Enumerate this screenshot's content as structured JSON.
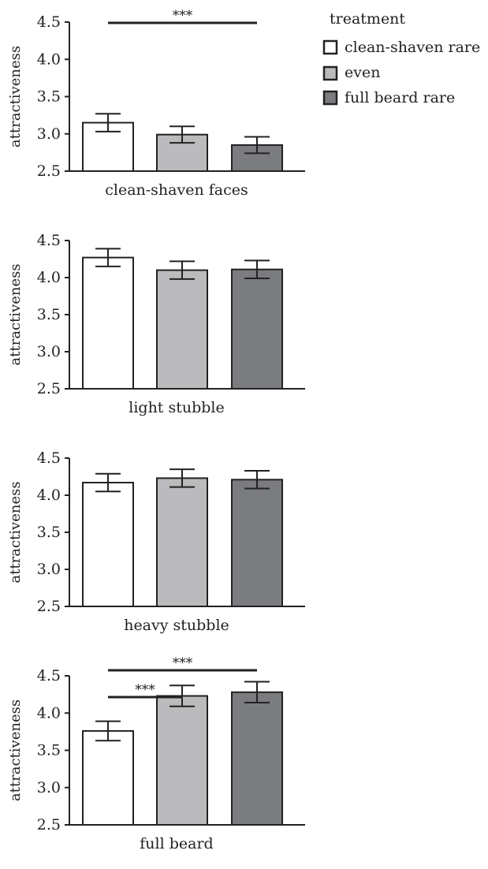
{
  "legend": {
    "title": "treatment",
    "items": [
      {
        "label": "clean-shaven rare",
        "color": "#ffffff"
      },
      {
        "label": "even",
        "color": "#bbbbbd"
      },
      {
        "label": "full beard rare",
        "color": "#7b7c80"
      }
    ]
  },
  "colors": {
    "axis": "#222222",
    "bar_stroke": "#222222"
  },
  "chart_data": [
    {
      "type": "bar",
      "xlabel": "clean-shaven faces",
      "ylabel": "attractiveness",
      "ylim": [
        2.5,
        4.5
      ],
      "yticks": [
        "4.5",
        "4.0",
        "3.5",
        "3.0",
        "2.5"
      ],
      "categories": [
        "clean-shaven rare",
        "even",
        "full beard rare"
      ],
      "values": [
        3.15,
        2.99,
        2.85
      ],
      "errors": [
        0.12,
        0.11,
        0.11
      ],
      "significance": [
        {
          "from": 0,
          "to": 2,
          "label": "***"
        }
      ]
    },
    {
      "type": "bar",
      "xlabel": "light stubble",
      "ylabel": "attractiveness",
      "ylim": [
        2.5,
        4.5
      ],
      "yticks": [
        "4.5",
        "4.0",
        "3.5",
        "3.0",
        "2.5"
      ],
      "categories": [
        "clean-shaven rare",
        "even",
        "full beard rare"
      ],
      "values": [
        4.27,
        4.1,
        4.11
      ],
      "errors": [
        0.12,
        0.12,
        0.12
      ],
      "significance": []
    },
    {
      "type": "bar",
      "xlabel": "heavy stubble",
      "ylabel": "attractiveness",
      "ylim": [
        2.5,
        4.5
      ],
      "yticks": [
        "4.5",
        "4.0",
        "3.5",
        "3.0",
        "2.5"
      ],
      "categories": [
        "clean-shaven rare",
        "even",
        "full beard rare"
      ],
      "values": [
        4.17,
        4.23,
        4.21
      ],
      "errors": [
        0.12,
        0.12,
        0.12
      ],
      "significance": []
    },
    {
      "type": "bar",
      "xlabel": "full beard",
      "ylabel": "attractiveness",
      "ylim": [
        2.5,
        4.5
      ],
      "yticks": [
        "4.5",
        "4.0",
        "3.5",
        "3.0",
        "2.5"
      ],
      "categories": [
        "clean-shaven rare",
        "even",
        "full beard rare"
      ],
      "values": [
        3.76,
        4.23,
        4.28
      ],
      "errors": [
        0.13,
        0.14,
        0.14
      ],
      "significance": [
        {
          "from": 0,
          "to": 1,
          "label": "***"
        },
        {
          "from": 0,
          "to": 2,
          "label": "***"
        }
      ]
    }
  ]
}
